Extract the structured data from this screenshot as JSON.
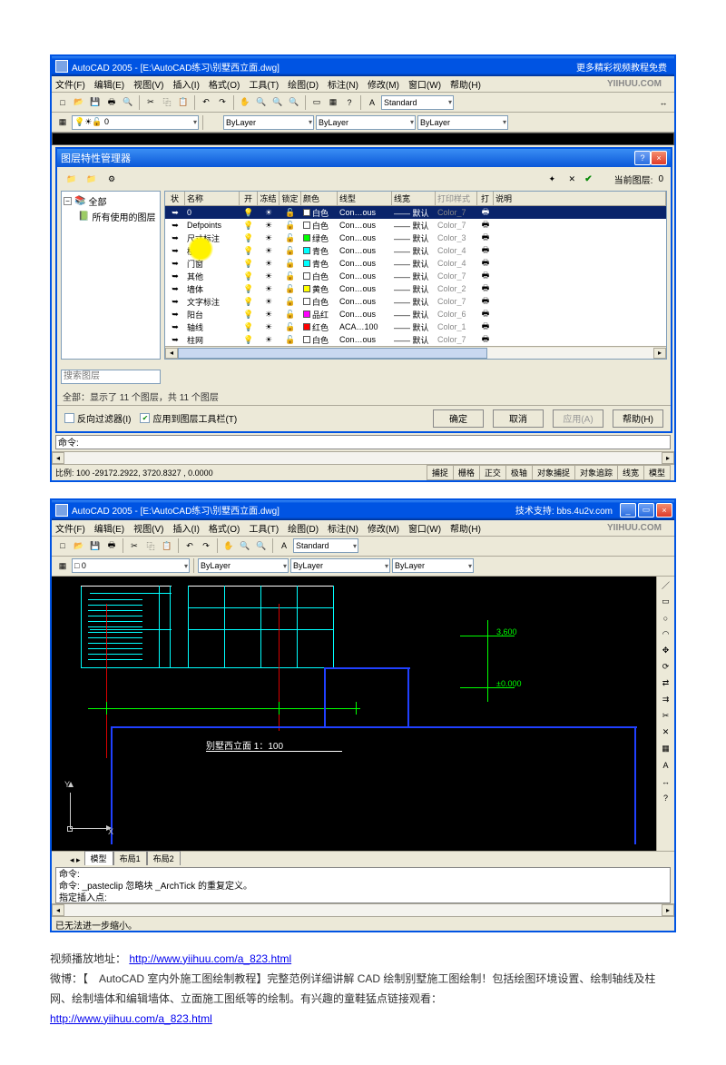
{
  "win1": {
    "title": "AutoCAD 2005 - [E:\\AutoCAD练习\\别墅西立面.dwg]",
    "watermark": "更多精彩视频教程免费",
    "menu": [
      "文件(F)",
      "编辑(E)",
      "视图(V)",
      "插入(I)",
      "格式(O)",
      "工具(T)",
      "绘图(D)",
      "标注(N)",
      "修改(M)",
      "窗口(W)",
      "帮助(H)"
    ],
    "brand": "YIIHUU.COM",
    "dlg_title": "图层特性管理器",
    "current_layer_label": "当前图层:",
    "current_layer_val": "0",
    "tree_root": "全部",
    "tree_child": "所有使用的图层",
    "search_ph": "搜索图层",
    "columns": [
      "状",
      "名称",
      "开",
      "冻结",
      "锁定",
      "颜色",
      "线型",
      "线宽",
      "打印样式",
      "打",
      "说明"
    ],
    "layers": [
      {
        "name": "0",
        "color": "#ffffff",
        "cname": "白色",
        "lt": "Con…ous",
        "lw": "—— 默认",
        "ps": "Color_7",
        "sel": true
      },
      {
        "name": "Defpoints",
        "color": "#ffffff",
        "cname": "白色",
        "lt": "Con…ous",
        "lw": "—— 默认",
        "ps": "Color_7"
      },
      {
        "name": "尺寸标注",
        "color": "#00ff00",
        "cname": "绿色",
        "lt": "Con…ous",
        "lw": "—— 默认",
        "ps": "Color_3"
      },
      {
        "name": "楼梯",
        "color": "#00ffff",
        "cname": "青色",
        "lt": "Con…ous",
        "lw": "—— 默认",
        "ps": "Color_4"
      },
      {
        "name": "门窗",
        "color": "#00ffff",
        "cname": "青色",
        "lt": "Con…ous",
        "lw": "—— 默认",
        "ps": "Color_4"
      },
      {
        "name": "其他",
        "color": "#ffffff",
        "cname": "白色",
        "lt": "Con…ous",
        "lw": "—— 默认",
        "ps": "Color_7"
      },
      {
        "name": "墙体",
        "color": "#ffff00",
        "cname": "黄色",
        "lt": "Con…ous",
        "lw": "—— 默认",
        "ps": "Color_2"
      },
      {
        "name": "文字标注",
        "color": "#ffffff",
        "cname": "白色",
        "lt": "Con…ous",
        "lw": "—— 默认",
        "ps": "Color_7"
      },
      {
        "name": "阳台",
        "color": "#ff00ff",
        "cname": "品红",
        "lt": "Con…ous",
        "lw": "—— 默认",
        "ps": "Color_6"
      },
      {
        "name": "轴线",
        "color": "#ff0000",
        "cname": "红色",
        "lt": "ACA…100",
        "lw": "—— 默认",
        "ps": "Color_1"
      },
      {
        "name": "柱网",
        "color": "#ffffff",
        "cname": "白色",
        "lt": "Con…ous",
        "lw": "—— 默认",
        "ps": "Color_7"
      }
    ],
    "bulb": "💡",
    "frz": "☀",
    "lock": "🔓",
    "print": "🖶",
    "status_icon": "➥",
    "status": "全部：显示了 11 个图层，共 11 个图层",
    "chk1": "反向过滤器(I)",
    "chk2": "应用到图层工具栏(T)",
    "btn_ok": "确定",
    "btn_cancel": "取消",
    "btn_apply": "应用(A)",
    "btn_help": "帮助(H)",
    "cmd_label": "命令:",
    "coords": "比例: 100  -29172.2922, 3720.8327 , 0.0000",
    "modes": [
      "捕捉",
      "栅格",
      "正交",
      "极轴",
      "对象捕捉",
      "对象追踪",
      "线宽",
      "模型"
    ],
    "combo_bylayer": "ByLayer",
    "combo_standard": "Standard"
  },
  "win2": {
    "title": "AutoCAD 2005 - [E:\\AutoCAD练习\\别墅西立面.dwg]",
    "watermark": "技术支持: bbs.4u2v.com",
    "brand": "YIIHUU.COM",
    "menu": [
      "文件(F)",
      "编辑(E)",
      "视图(V)",
      "插入(I)",
      "格式(O)",
      "工具(T)",
      "绘图(D)",
      "标注(N)",
      "修改(M)",
      "窗口(W)",
      "帮助(H)"
    ],
    "drawing_title": "别墅西立面 1：100",
    "dim1": "3,600",
    "dim2": "±0.000",
    "axis_y": "Y",
    "axis_x": "X",
    "tabs": [
      "模型",
      "布局1",
      "布局2"
    ],
    "cmd1": "命令:",
    "cmd2": "命令: _pasteclip 忽略块 _ArchTick 的重复定义。",
    "cmd3": "指定插入点:",
    "status2": "已无法进一步缩小。",
    "combo_bylayer": "ByLayer",
    "combo_layer": "□ 0",
    "combo_std": "Standard"
  },
  "tool_icons": {
    "new": "□",
    "open": "📂",
    "save": "💾",
    "print": "🖶",
    "preview": "🔍",
    "cut": "✂",
    "copy": "⿻",
    "paste": "📋",
    "undo": "↶",
    "redo": "↷",
    "pan": "✋",
    "zoom": "🔍",
    "line": "／",
    "rect": "▭",
    "circle": "○",
    "arc": "◠",
    "text": "A",
    "dim": "↔",
    "hatch": "▦",
    "move": "✥",
    "rotate": "⟳",
    "mirror": "⇄",
    "offset": "⇉",
    "trim": "✂",
    "erase": "✕",
    "help": "?",
    "a": "A"
  },
  "footer": {
    "l1a": "视频播放地址：",
    "l1_link": "http://www.yiihuu.com/a_823.html",
    "l2": "微博：【　AutoCAD 室内外施工图绘制教程】完整范例详细讲解 CAD 绘制别墅施工图绘制！包括绘图环境设置、绘制轴线及柱网、绘制墙体和编辑墙体、立面施工图纸等的绘制。有兴趣的童鞋猛点链接观看：",
    "l3_link": "http://www.yiihuu.com/a_823.html"
  }
}
